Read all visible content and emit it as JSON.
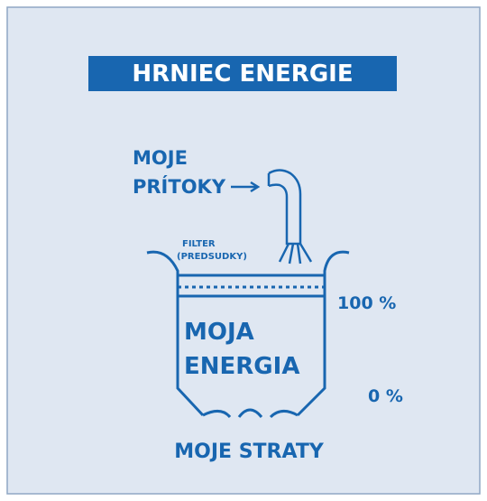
{
  "title": "HRNIEC ENERGIE",
  "inflow": [
    "MOJE",
    "PRÍTOKY"
  ],
  "filter": [
    "FILTER",
    "(PREDSUDKY)"
  ],
  "pot_label": [
    "MOJA",
    "ENERGIA"
  ],
  "levels": [
    "100 %",
    "0 %"
  ],
  "outflow": "MOJE STRATY"
}
